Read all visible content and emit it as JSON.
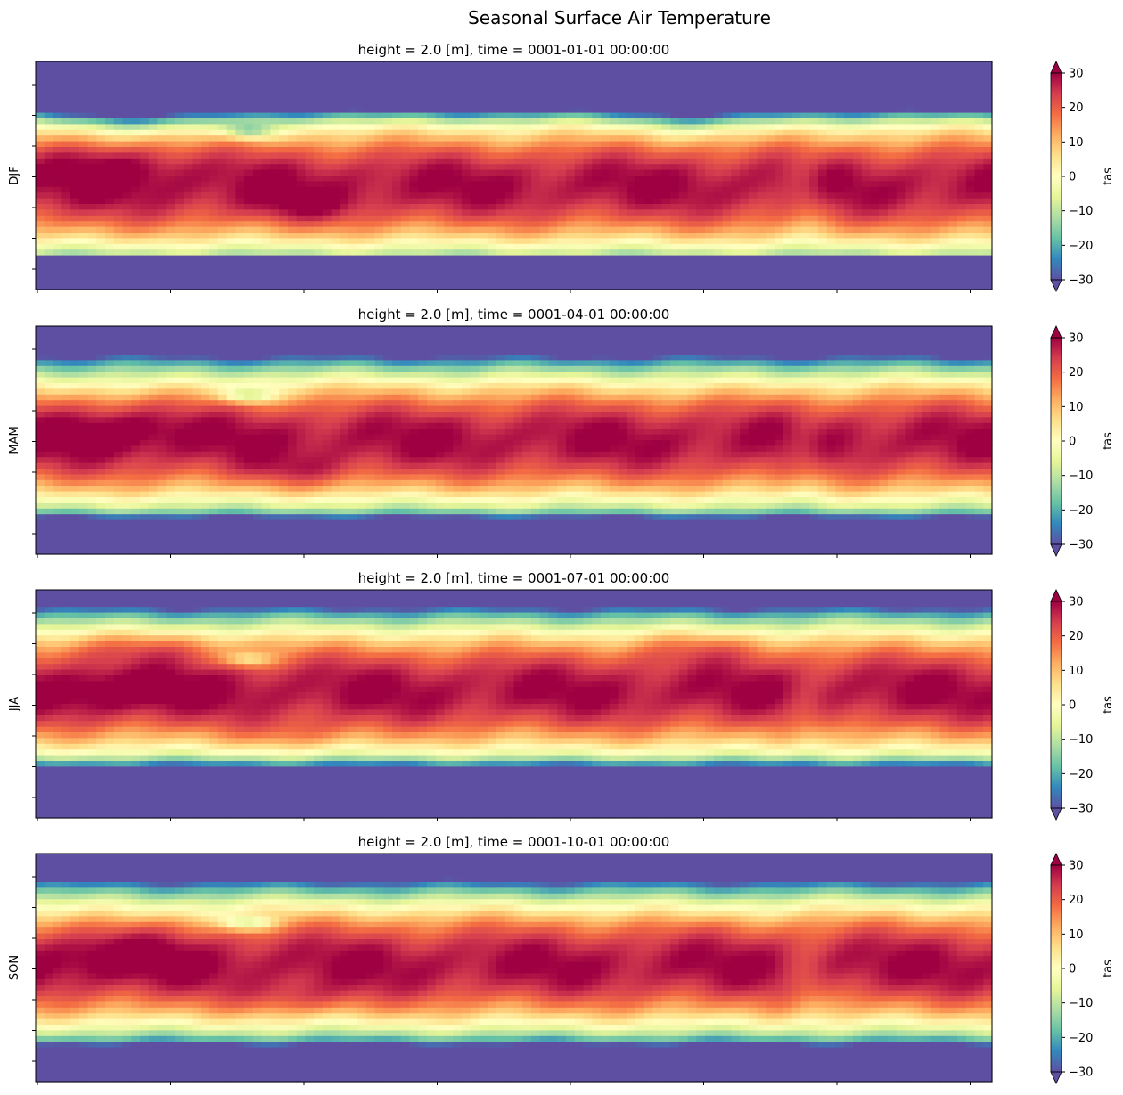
{
  "suptitle": "Seasonal Surface Air Temperature",
  "chart_data": [
    {
      "type": "heatmap",
      "title": "height = 2.0 [m], time = 0001-01-01 00:00:00",
      "ylabel": "DJF",
      "colorbar": {
        "label": "tas",
        "ticks": [
          -30,
          -20,
          -10,
          0,
          10,
          20,
          30
        ],
        "vmin": -30,
        "vmax": 30,
        "extend": "both",
        "cmap": "Spectral_r"
      },
      "x_ticks_count": 8,
      "y_ticks_count": 7,
      "description_features": {
        "arctic_min": -30,
        "equatorial_max": 30
      }
    },
    {
      "type": "heatmap",
      "title": "height = 2.0 [m], time = 0001-04-01 00:00:00",
      "ylabel": "MAM",
      "colorbar": {
        "label": "tas",
        "ticks": [
          -30,
          -20,
          -10,
          0,
          10,
          20,
          30
        ],
        "vmin": -30,
        "vmax": 30,
        "extend": "both",
        "cmap": "Spectral_r"
      },
      "x_ticks_count": 8,
      "y_ticks_count": 7
    },
    {
      "type": "heatmap",
      "title": "height = 2.0 [m], time = 0001-07-01 00:00:00",
      "ylabel": "JJA",
      "colorbar": {
        "label": "tas",
        "ticks": [
          -30,
          -20,
          -10,
          0,
          10,
          20,
          30
        ],
        "vmin": -30,
        "vmax": 30,
        "extend": "both",
        "cmap": "Spectral_r"
      },
      "x_ticks_count": 8,
      "y_ticks_count": 7
    },
    {
      "type": "heatmap",
      "title": "height = 2.0 [m], time = 0001-10-01 00:00:00",
      "ylabel": "SON",
      "colorbar": {
        "label": "tas",
        "ticks": [
          -30,
          -20,
          -10,
          0,
          10,
          20,
          30
        ],
        "vmin": -30,
        "vmax": 30,
        "extend": "both",
        "cmap": "Spectral_r"
      },
      "x_ticks_count": 8,
      "y_ticks_count": 7
    }
  ],
  "colors": {
    "spectral_r": [
      "#5e4fa2",
      "#3288bd",
      "#66c2a5",
      "#abdda4",
      "#e6f598",
      "#ffffbf",
      "#fee08b",
      "#fdae61",
      "#f46d43",
      "#d53e4f",
      "#9e0142"
    ]
  }
}
